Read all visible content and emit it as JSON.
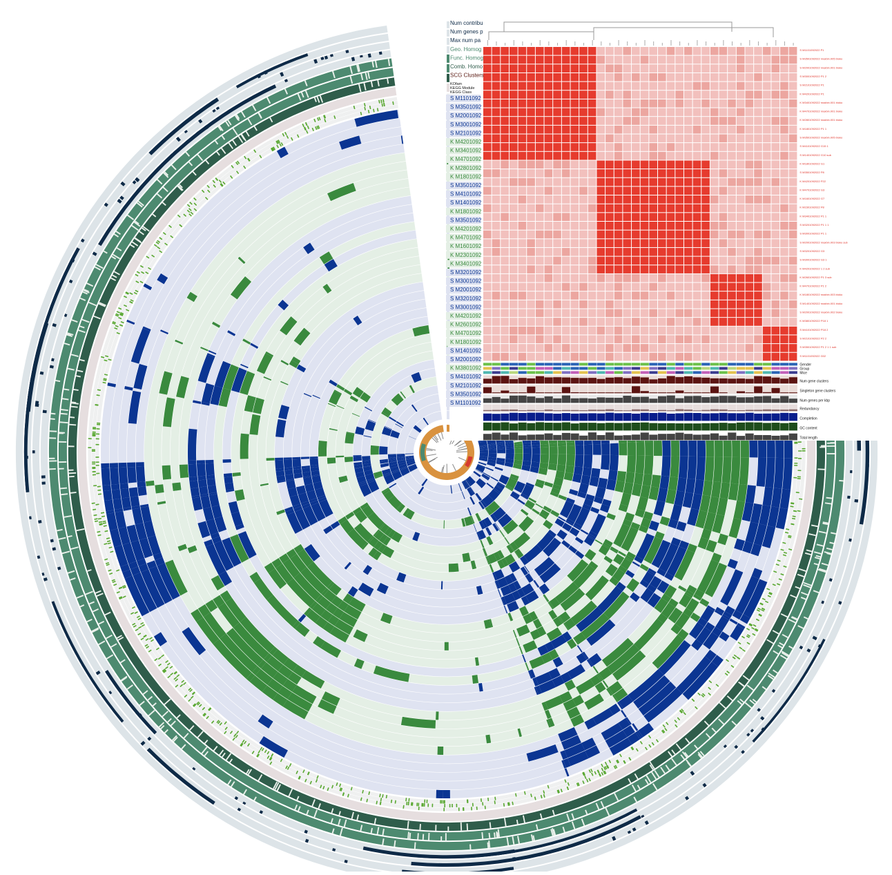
{
  "ring_labels": [
    {
      "text": "Num contribu",
      "color": "#0e2a47"
    },
    {
      "text": "Num genes p",
      "color": "#0e2a47"
    },
    {
      "text": "Max num pa",
      "color": "#0e2a47"
    },
    {
      "text": "Geo. Homog",
      "color": "#4d8a70"
    },
    {
      "text": "Func. Homog",
      "color": "#4d8a70"
    },
    {
      "text": "Comb. Homo",
      "color": "#2f5d4b"
    },
    {
      "text": "SCG Clusters",
      "color": "#5a1a12"
    }
  ],
  "small_ring_labels": [
    "KOfam",
    "KEGG Module",
    "KEGG Class"
  ],
  "sample_labels": [
    {
      "text": "S M1101092",
      "kind": "S"
    },
    {
      "text": "S M3501092",
      "kind": "S"
    },
    {
      "text": "S M2001092",
      "kind": "S"
    },
    {
      "text": "S M3001092",
      "kind": "S"
    },
    {
      "text": "S M2101092",
      "kind": "S"
    },
    {
      "text": "K M4201092",
      "kind": "K"
    },
    {
      "text": "K M3401092",
      "kind": "K"
    },
    {
      "text": "K M4701092",
      "kind": "K"
    },
    {
      "text": "K M2801092",
      "kind": "K"
    },
    {
      "text": "K M1801092",
      "kind": "K"
    },
    {
      "text": "S M3501092",
      "kind": "S"
    },
    {
      "text": "S M4101092",
      "kind": "S"
    },
    {
      "text": "S M1401092",
      "kind": "S"
    },
    {
      "text": "K M1801092",
      "kind": "K"
    },
    {
      "text": "S M3501092",
      "kind": "S"
    },
    {
      "text": "K M4201092",
      "kind": "K"
    },
    {
      "text": "K M4701092",
      "kind": "K"
    },
    {
      "text": "K M1601092",
      "kind": "K"
    },
    {
      "text": "K M2301092",
      "kind": "K"
    },
    {
      "text": "K M3401092",
      "kind": "K"
    },
    {
      "text": "S M3201092",
      "kind": "S"
    },
    {
      "text": "S M3001092",
      "kind": "S"
    },
    {
      "text": "S M2001092",
      "kind": "S"
    },
    {
      "text": "S M3201092",
      "kind": "S"
    },
    {
      "text": "S M3001092",
      "kind": "S"
    },
    {
      "text": "K M4201092",
      "kind": "K"
    },
    {
      "text": "K M2601092",
      "kind": "K"
    },
    {
      "text": "K M4701092",
      "kind": "K"
    },
    {
      "text": "K M1801092",
      "kind": "K"
    },
    {
      "text": "S M1401092",
      "kind": "S"
    },
    {
      "text": "S M2001092",
      "kind": "S"
    },
    {
      "text": "K M3801092",
      "kind": "K"
    },
    {
      "text": "S M4101092",
      "kind": "S"
    },
    {
      "text": "S M2101092",
      "kind": "S"
    },
    {
      "text": "S M3501092",
      "kind": "S"
    },
    {
      "text": "S M1101092",
      "kind": "S"
    }
  ],
  "heatmap": {
    "blocks": [
      [
        0,
        13
      ],
      [
        13,
        26
      ],
      [
        26,
        32
      ],
      [
        32,
        36
      ]
    ],
    "colors": {
      "high": "#e63b2e",
      "low": "#f2c0bd",
      "mid": "#eca6a0"
    }
  },
  "heatmap_row_labels": [
    "S M1101092022 P1",
    "S M3501092022 maxbin.005 bioko",
    "S M2001092022 maxbin.001 bioko",
    "S M3001092022 P1 2",
    "S M2101092022 P1",
    "K M4201092022 P1",
    "K M3401092022 maxbin.001 bioko",
    "K M4701092022 maxbin.001 bioko",
    "K M2801092022 maxbin.001 bioko",
    "K M1801092022 P1 1",
    "S M3501092022 maxbin.005 bioko",
    "S M4101092022 G15 1",
    "S M1401092022 G10 sub",
    "K M1801092022 G1",
    "S M3501092022 P8",
    "K M4201092022 P22",
    "K M4701092022 G3",
    "K M1601092022 G7",
    "K M2301092022 P8",
    "K M3401092022 P1 1",
    "S M3201092022 P1 1 1",
    "S M3001092022 P1 1",
    "S M2001092022 maxbin.003 bioko sub",
    "S M3201092022 G3",
    "S M3001092022 G3 1",
    "K M4201092022 1 2 sub",
    "K M2601092022 P1 3 sub",
    "K M4701092022 P1 2",
    "K M1801092022 maxbin.003 bioko",
    "S M1401092022 maxbin.001 bioko",
    "S M2001092022 maxbin.002 bioko",
    "K M3801092022 P18 1",
    "S M4101092022 P18 2",
    "S M2101092022 P2 2",
    "S M3501092022 P1 2 1 1 sub",
    "S M1101092022 G02"
  ],
  "strip_labels": [
    "Gender",
    "Group",
    "Mice",
    "Num gene clusters",
    "Singleton gene clusters",
    "Num genes per kbp",
    "Redundancy",
    "Completion",
    "GC content",
    "Total length"
  ],
  "colors": {
    "blue": "#0b3592",
    "green": "#3a8a3e",
    "lightblue": "#dfe3f1",
    "lightgreen": "#e4efe5",
    "navy": "#0e2a47",
    "outer_gray": "#dde4e8",
    "seafoam": "#4d8a70",
    "darkseafoam": "#2f5d4b",
    "scg": "#e6dedf",
    "ann": "#eff0f0",
    "anngreen": "#5aa832",
    "dendro_orange": "#d9923f",
    "dendro_red": "#d63a2e",
    "dendro_green": "#4d8a70",
    "maroon": "#5c1412",
    "dkgray": "#444444",
    "dkgreen": "#1e4d1c"
  }
}
